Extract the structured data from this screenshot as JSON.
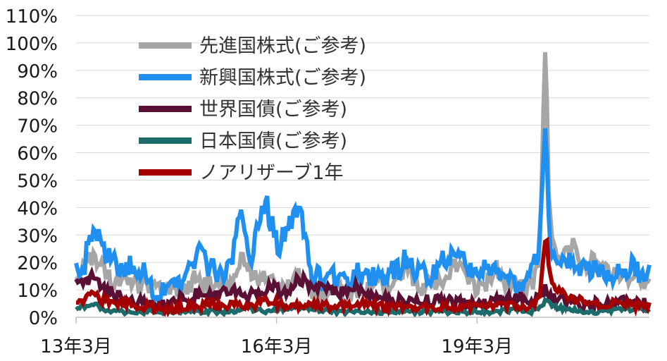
{
  "chart_data": {
    "type": "line",
    "title": "",
    "xlabel": "",
    "ylabel": "",
    "ylim": [
      0,
      110
    ],
    "y_ticks": [
      "0%",
      "10%",
      "20%",
      "30%",
      "40%",
      "50%",
      "60%",
      "70%",
      "80%",
      "90%",
      "100%",
      "110%"
    ],
    "x_ticks": [
      {
        "label": "13年3月",
        "t": 2013.17
      },
      {
        "label": "16年3月",
        "t": 2016.17
      },
      {
        "label": "19年3月",
        "t": 2019.17
      }
    ],
    "x_range": [
      2013.17,
      2021.75
    ],
    "grid": "horizontal",
    "legend_position": "top-left",
    "series": [
      {
        "name": "先進国株式(ご参考)",
        "color": "#a6a6a6",
        "stroke": 6,
        "keypoints": [
          [
            2013.17,
            17
          ],
          [
            2013.3,
            19
          ],
          [
            2013.45,
            23
          ],
          [
            2013.5,
            21
          ],
          [
            2013.6,
            16
          ],
          [
            2013.75,
            12
          ],
          [
            2013.9,
            15
          ],
          [
            2014.0,
            13
          ],
          [
            2014.2,
            12
          ],
          [
            2014.35,
            10
          ],
          [
            2014.5,
            9
          ],
          [
            2014.65,
            11
          ],
          [
            2014.8,
            10
          ],
          [
            2014.95,
            14
          ],
          [
            2015.1,
            11
          ],
          [
            2015.25,
            13
          ],
          [
            2015.4,
            10
          ],
          [
            2015.55,
            15
          ],
          [
            2015.65,
            22
          ],
          [
            2015.75,
            18
          ],
          [
            2015.9,
            13
          ],
          [
            2016.0,
            16
          ],
          [
            2016.1,
            12
          ],
          [
            2016.25,
            10
          ],
          [
            2016.4,
            11
          ],
          [
            2016.5,
            17
          ],
          [
            2016.6,
            11
          ],
          [
            2016.7,
            8
          ],
          [
            2016.85,
            9
          ],
          [
            2017.0,
            11
          ],
          [
            2017.2,
            8
          ],
          [
            2017.4,
            10
          ],
          [
            2017.55,
            11
          ],
          [
            2017.7,
            13
          ],
          [
            2017.85,
            10
          ],
          [
            2018.0,
            12
          ],
          [
            2018.1,
            18
          ],
          [
            2018.2,
            14
          ],
          [
            2018.35,
            11
          ],
          [
            2018.5,
            12
          ],
          [
            2018.65,
            12
          ],
          [
            2018.8,
            17
          ],
          [
            2018.9,
            21
          ],
          [
            2019.0,
            16
          ],
          [
            2019.15,
            11
          ],
          [
            2019.3,
            12
          ],
          [
            2019.45,
            18
          ],
          [
            2019.6,
            13
          ],
          [
            2019.75,
            11
          ],
          [
            2019.9,
            10
          ],
          [
            2020.0,
            13
          ],
          [
            2020.1,
            17
          ],
          [
            2020.13,
            45
          ],
          [
            2020.16,
            70
          ],
          [
            2020.18,
            96
          ],
          [
            2020.2,
            97
          ],
          [
            2020.22,
            75
          ],
          [
            2020.25,
            40
          ],
          [
            2020.3,
            28
          ],
          [
            2020.4,
            22
          ],
          [
            2020.5,
            24
          ],
          [
            2020.6,
            26
          ],
          [
            2020.7,
            19
          ],
          [
            2020.8,
            17
          ],
          [
            2020.9,
            24
          ],
          [
            2021.0,
            19
          ],
          [
            2021.1,
            20
          ],
          [
            2021.2,
            17
          ],
          [
            2021.3,
            15
          ],
          [
            2021.45,
            14
          ],
          [
            2021.6,
            12
          ],
          [
            2021.75,
            11
          ]
        ],
        "amplitude": 3.5
      },
      {
        "name": "新興国株式(ご参考)",
        "color": "#1f8ff0",
        "stroke": 6,
        "keypoints": [
          [
            2013.17,
            18
          ],
          [
            2013.3,
            20
          ],
          [
            2013.4,
            30
          ],
          [
            2013.45,
            35
          ],
          [
            2013.55,
            24
          ],
          [
            2013.65,
            21
          ],
          [
            2013.8,
            19
          ],
          [
            2013.95,
            18
          ],
          [
            2014.1,
            18
          ],
          [
            2014.25,
            14
          ],
          [
            2014.35,
            10
          ],
          [
            2014.5,
            8
          ],
          [
            2014.6,
            11
          ],
          [
            2014.75,
            12
          ],
          [
            2014.85,
            16
          ],
          [
            2014.95,
            23
          ],
          [
            2015.05,
            22
          ],
          [
            2015.2,
            17
          ],
          [
            2015.35,
            16
          ],
          [
            2015.5,
            20
          ],
          [
            2015.6,
            40
          ],
          [
            2015.7,
            32
          ],
          [
            2015.8,
            21
          ],
          [
            2015.9,
            34
          ],
          [
            2016.0,
            43
          ],
          [
            2016.1,
            33
          ],
          [
            2016.2,
            26
          ],
          [
            2016.3,
            30
          ],
          [
            2016.4,
            34
          ],
          [
            2016.5,
            42
          ],
          [
            2016.6,
            27
          ],
          [
            2016.7,
            15
          ],
          [
            2016.85,
            14
          ],
          [
            2017.0,
            15
          ],
          [
            2017.2,
            11
          ],
          [
            2017.4,
            16
          ],
          [
            2017.55,
            15
          ],
          [
            2017.7,
            14
          ],
          [
            2017.85,
            16
          ],
          [
            2018.0,
            17
          ],
          [
            2018.1,
            22
          ],
          [
            2018.2,
            18
          ],
          [
            2018.35,
            16
          ],
          [
            2018.5,
            16
          ],
          [
            2018.65,
            21
          ],
          [
            2018.75,
            23
          ],
          [
            2018.85,
            25
          ],
          [
            2018.95,
            20
          ],
          [
            2019.05,
            18
          ],
          [
            2019.2,
            16
          ],
          [
            2019.35,
            20
          ],
          [
            2019.45,
            19
          ],
          [
            2019.6,
            14
          ],
          [
            2019.75,
            12
          ],
          [
            2019.9,
            14
          ],
          [
            2020.0,
            19
          ],
          [
            2020.08,
            20
          ],
          [
            2020.13,
            40
          ],
          [
            2020.16,
            56
          ],
          [
            2020.18,
            66
          ],
          [
            2020.2,
            68
          ],
          [
            2020.23,
            45
          ],
          [
            2020.27,
            26
          ],
          [
            2020.35,
            20
          ],
          [
            2020.45,
            18
          ],
          [
            2020.55,
            22
          ],
          [
            2020.65,
            20
          ],
          [
            2020.75,
            17
          ],
          [
            2020.85,
            18
          ],
          [
            2020.95,
            16
          ],
          [
            2021.1,
            15
          ],
          [
            2021.25,
            15
          ],
          [
            2021.4,
            17
          ],
          [
            2021.5,
            20
          ],
          [
            2021.6,
            16
          ],
          [
            2021.75,
            15
          ]
        ],
        "amplitude": 4.5
      },
      {
        "name": "世界国債(ご参考)",
        "color": "#5a1035",
        "stroke": 6,
        "keypoints": [
          [
            2013.17,
            13
          ],
          [
            2013.3,
            12
          ],
          [
            2013.45,
            16
          ],
          [
            2013.55,
            11
          ],
          [
            2013.7,
            9
          ],
          [
            2013.85,
            7
          ],
          [
            2014.0,
            6
          ],
          [
            2014.2,
            5
          ],
          [
            2014.4,
            4
          ],
          [
            2014.6,
            5
          ],
          [
            2014.75,
            7
          ],
          [
            2014.9,
            8
          ],
          [
            2015.1,
            9
          ],
          [
            2015.3,
            8
          ],
          [
            2015.5,
            10
          ],
          [
            2015.65,
            9
          ],
          [
            2015.8,
            8
          ],
          [
            2015.95,
            9
          ],
          [
            2016.1,
            11
          ],
          [
            2016.25,
            9
          ],
          [
            2016.4,
            11
          ],
          [
            2016.5,
            14
          ],
          [
            2016.6,
            13
          ],
          [
            2016.75,
            11
          ],
          [
            2016.9,
            11
          ],
          [
            2017.0,
            9
          ],
          [
            2017.2,
            9
          ],
          [
            2017.35,
            11
          ],
          [
            2017.5,
            9
          ],
          [
            2017.7,
            7
          ],
          [
            2017.9,
            6
          ],
          [
            2018.1,
            7
          ],
          [
            2018.3,
            6
          ],
          [
            2018.5,
            6
          ],
          [
            2018.7,
            6
          ],
          [
            2018.9,
            5
          ],
          [
            2019.1,
            5
          ],
          [
            2019.3,
            5
          ],
          [
            2019.5,
            6
          ],
          [
            2019.7,
            7
          ],
          [
            2019.9,
            7
          ],
          [
            2020.1,
            6
          ],
          [
            2020.16,
            9
          ],
          [
            2020.2,
            11
          ],
          [
            2020.25,
            8
          ],
          [
            2020.35,
            6
          ],
          [
            2020.5,
            6
          ],
          [
            2020.7,
            5
          ],
          [
            2020.9,
            5
          ],
          [
            2021.1,
            5
          ],
          [
            2021.3,
            6
          ],
          [
            2021.5,
            5
          ],
          [
            2021.75,
            5
          ]
        ],
        "amplitude": 2.2
      },
      {
        "name": "日本国債(ご参考)",
        "color": "#1b6b6b",
        "stroke": 6,
        "keypoints": [
          [
            2013.17,
            3
          ],
          [
            2013.3,
            4
          ],
          [
            2013.45,
            5
          ],
          [
            2013.55,
            3
          ],
          [
            2013.7,
            2
          ],
          [
            2014.0,
            2
          ],
          [
            2014.5,
            2
          ],
          [
            2015.0,
            2
          ],
          [
            2015.5,
            2
          ],
          [
            2015.8,
            3
          ],
          [
            2016.0,
            2
          ],
          [
            2016.2,
            3
          ],
          [
            2016.5,
            4
          ],
          [
            2016.7,
            3
          ],
          [
            2017.0,
            2
          ],
          [
            2017.5,
            2
          ],
          [
            2018.0,
            2
          ],
          [
            2018.5,
            2
          ],
          [
            2019.0,
            2
          ],
          [
            2019.5,
            2
          ],
          [
            2019.8,
            3
          ],
          [
            2020.0,
            2
          ],
          [
            2020.16,
            5
          ],
          [
            2020.2,
            7
          ],
          [
            2020.3,
            4
          ],
          [
            2020.5,
            3
          ],
          [
            2020.8,
            2
          ],
          [
            2021.0,
            2
          ],
          [
            2021.3,
            3
          ],
          [
            2021.5,
            3
          ],
          [
            2021.6,
            4
          ],
          [
            2021.75,
            2
          ]
        ],
        "amplitude": 0.8
      },
      {
        "name": "ノアリザーブ1年",
        "color": "#a50000",
        "stroke": 6,
        "keypoints": [
          [
            2013.17,
            5
          ],
          [
            2013.3,
            6
          ],
          [
            2013.45,
            9
          ],
          [
            2013.55,
            6
          ],
          [
            2013.7,
            6
          ],
          [
            2013.85,
            5
          ],
          [
            2014.0,
            5
          ],
          [
            2014.2,
            4
          ],
          [
            2014.4,
            3
          ],
          [
            2014.6,
            3
          ],
          [
            2014.8,
            4
          ],
          [
            2015.0,
            4
          ],
          [
            2015.2,
            5
          ],
          [
            2015.4,
            4
          ],
          [
            2015.6,
            5
          ],
          [
            2015.8,
            4
          ],
          [
            2016.0,
            6
          ],
          [
            2016.15,
            5
          ],
          [
            2016.3,
            4
          ],
          [
            2016.5,
            4
          ],
          [
            2016.7,
            5
          ],
          [
            2016.9,
            4
          ],
          [
            2017.1,
            4
          ],
          [
            2017.3,
            4
          ],
          [
            2017.5,
            5
          ],
          [
            2017.7,
            4
          ],
          [
            2017.9,
            4
          ],
          [
            2018.1,
            4
          ],
          [
            2018.3,
            4
          ],
          [
            2018.5,
            4
          ],
          [
            2018.7,
            4
          ],
          [
            2018.9,
            4
          ],
          [
            2019.1,
            4
          ],
          [
            2019.3,
            4
          ],
          [
            2019.5,
            4
          ],
          [
            2019.7,
            4
          ],
          [
            2019.9,
            4
          ],
          [
            2020.05,
            5
          ],
          [
            2020.12,
            10
          ],
          [
            2020.16,
            20
          ],
          [
            2020.18,
            28
          ],
          [
            2020.21,
            29
          ],
          [
            2020.25,
            18
          ],
          [
            2020.3,
            12
          ],
          [
            2020.4,
            9
          ],
          [
            2020.55,
            7
          ],
          [
            2020.7,
            6
          ],
          [
            2020.85,
            5
          ],
          [
            2021.0,
            5
          ],
          [
            2021.2,
            5
          ],
          [
            2021.4,
            5
          ],
          [
            2021.55,
            4
          ],
          [
            2021.75,
            4
          ]
        ],
        "amplitude": 1.6
      }
    ]
  }
}
